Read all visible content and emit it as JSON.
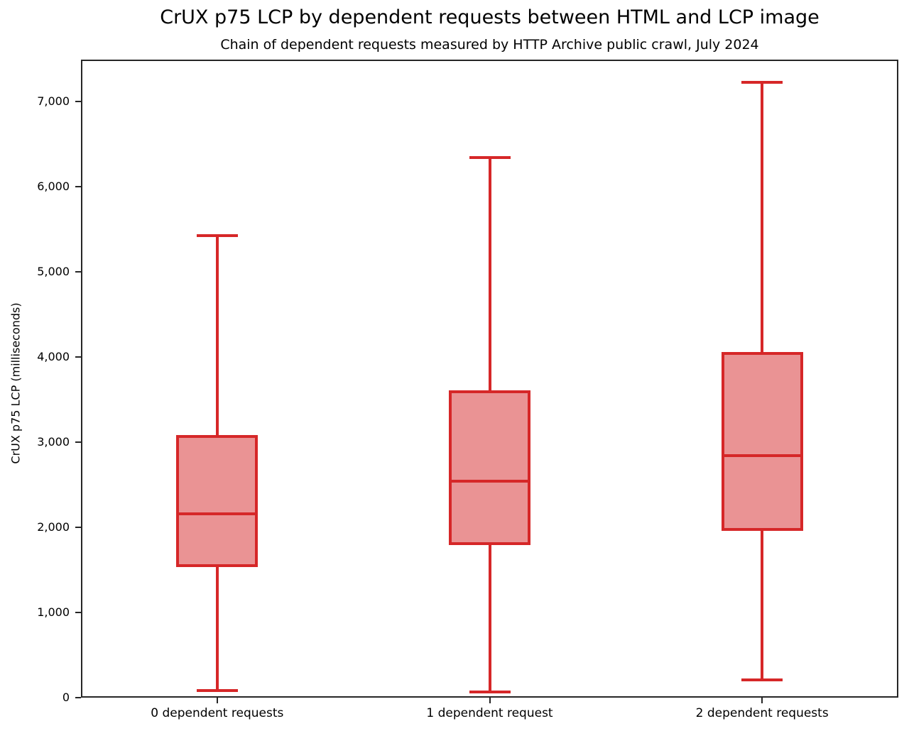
{
  "chart_data": {
    "type": "box",
    "title": "CrUX p75 LCP by dependent requests between HTML and LCP image",
    "subtitle": "Chain of dependent requests measured by HTTP Archive public crawl, July 2024",
    "xlabel": "",
    "ylabel": "CrUX p75 LCP (milliseconds)",
    "categories": [
      "0 dependent requests",
      "1 dependent request",
      "2 dependent requests"
    ],
    "series": [
      {
        "name": "0 dependent requests",
        "whisker_low": 80,
        "q1": 1530,
        "median": 2160,
        "q3": 3080,
        "whisker_high": 5420
      },
      {
        "name": "1 dependent request",
        "whisker_low": 70,
        "q1": 1790,
        "median": 2540,
        "q3": 3610,
        "whisker_high": 6340
      },
      {
        "name": "2 dependent requests",
        "whisker_low": 210,
        "q1": 1960,
        "median": 2840,
        "q3": 4060,
        "whisker_high": 7220
      }
    ],
    "y_ticks": [
      0,
      1000,
      2000,
      3000,
      4000,
      5000,
      6000,
      7000
    ],
    "y_tick_labels": [
      "0",
      "1,000",
      "2,000",
      "3,000",
      "4,000",
      "5,000",
      "6,000",
      "7,000"
    ],
    "ylim": [
      0,
      7490
    ],
    "grid": false,
    "legend": null,
    "colors": {
      "box_line": "#d62728",
      "box_fill": "#ea9394",
      "axis": "#262626",
      "text": "#000000"
    }
  }
}
